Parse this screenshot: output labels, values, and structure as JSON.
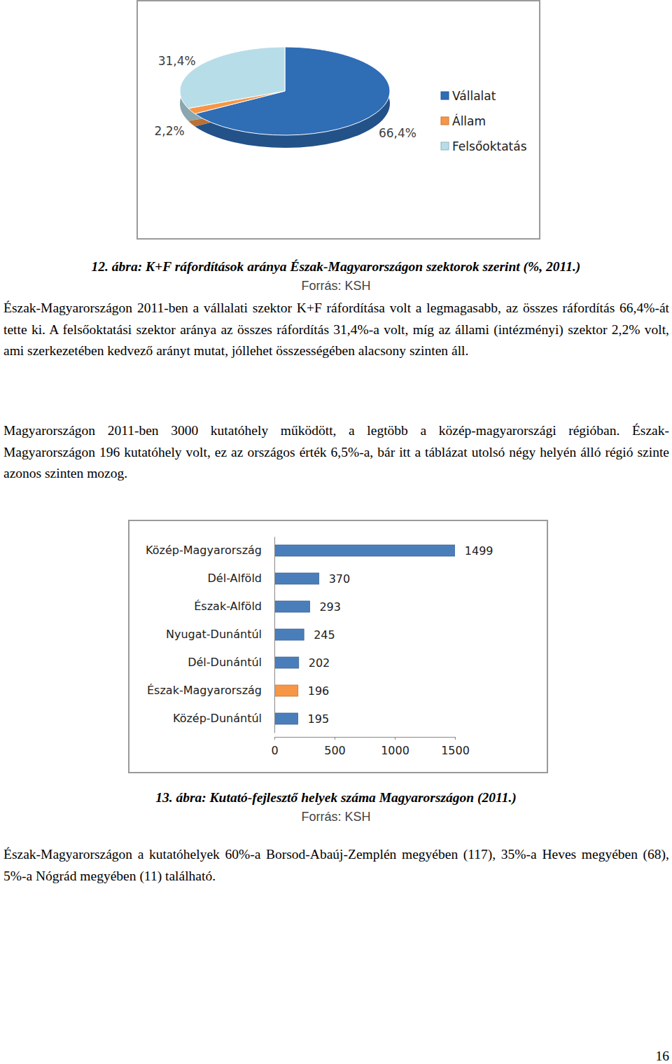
{
  "chart_data": [
    {
      "type": "pie",
      "categories": [
        "Vállalat",
        "Állam",
        "Felsőoktatás"
      ],
      "values": [
        66.4,
        2.2,
        31.4
      ],
      "value_labels": [
        "66,4%",
        "2,2%",
        "31,4%"
      ],
      "colors": [
        "#2f6db5",
        "#f79646",
        "#b7dde8"
      ],
      "data_labels": true,
      "legend": "right"
    },
    {
      "type": "bar",
      "orientation": "horizontal",
      "categories": [
        "Közép-Magyarország",
        "Dél-Alföld",
        "Észak-Alföld",
        "Nyugat-Dunántúl",
        "Dél-Dunántúl",
        "Észak-Magyarország",
        "Közép-Dunántúl"
      ],
      "values": [
        1499,
        370,
        293,
        245,
        202,
        196,
        195
      ],
      "colors": [
        "#4a7ebb",
        "#4a7ebb",
        "#4a7ebb",
        "#4a7ebb",
        "#4a7ebb",
        "#f79646",
        "#4a7ebb"
      ],
      "xlim": [
        0,
        1500
      ],
      "xticks": [
        0,
        500,
        1000,
        1500
      ],
      "data_labels": true,
      "grid": false
    }
  ],
  "document": {
    "figure_captions": [
      {
        "title": "12. ábra: K+F ráfordítások aránya Észak-Magyarországon szektorok szerint (%, 2011.)",
        "source": "Forrás: KSH"
      },
      {
        "title": "13. ábra: Kutató-fejlesztő helyek száma Magyarországon (2011.)",
        "source": "Forrás: KSH"
      }
    ],
    "paragraphs": [
      "Észak-Magyarországon 2011-ben a vállalati szektor K+F ráfordítása volt a legmagasabb, az összes ráfordítás 66,4%-át tette ki. A felsőoktatási szektor aránya az összes ráfordítás 31,4%-a volt, míg az állami (intézményi) szektor 2,2% volt, ami szerkezetében kedvező arányt mutat, jóllehet összességében alacsony szinten áll.",
      "Magyarországon 2011-ben 3000 kutatóhely működött, a legtöbb a közép-magyarországi régióban. Észak-Magyarországon 196 kutatóhely volt, ez az országos érték 6,5%-a, bár itt a táblázat utolsó négy helyén álló régió szinte azonos szinten mozog.",
      "Észak-Magyarországon a kutatóhelyek 60%-a Borsod-Abaúj-Zemplén megyében (117), 35%-a Heves megyében (68), 5%-a Nógrád megyében (11) található."
    ],
    "page_number": "16"
  }
}
